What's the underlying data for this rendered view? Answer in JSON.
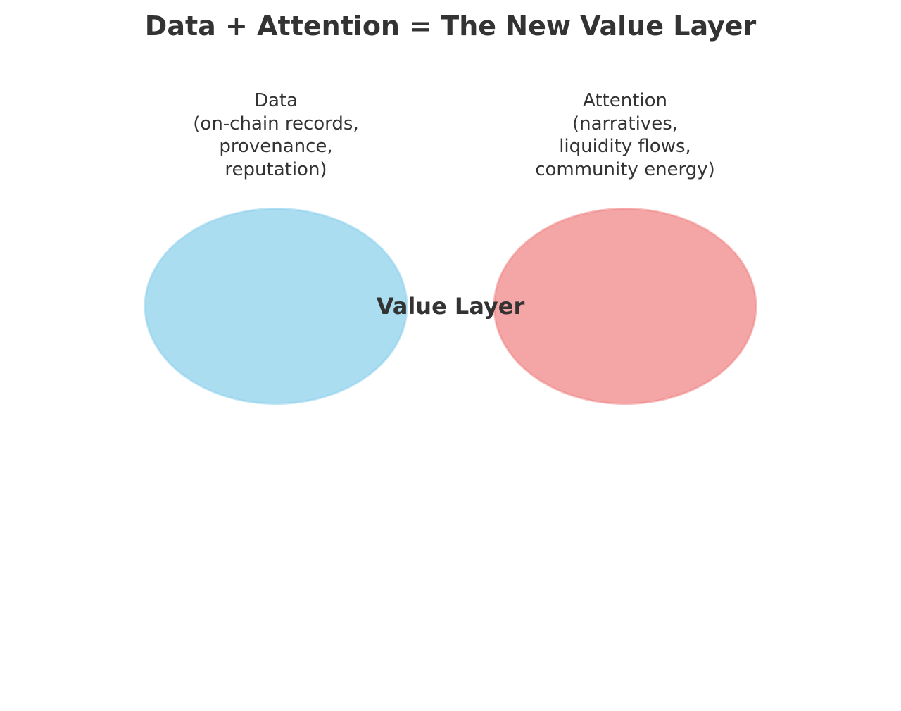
{
  "title": "Data + Attention = The New Value Layer",
  "circles": {
    "data": {
      "lines": [
        "Data",
        "(on-chain records,",
        "provenance,",
        "reputation)"
      ],
      "fill": "#87ceeb",
      "stroke": "#87ceeb"
    },
    "attention": {
      "lines": [
        "Attention",
        "(narratives,",
        "liquidity flows,",
        "community energy)"
      ],
      "fill": "#f08080",
      "stroke": "#f08080"
    }
  },
  "center_label": "Value Layer"
}
